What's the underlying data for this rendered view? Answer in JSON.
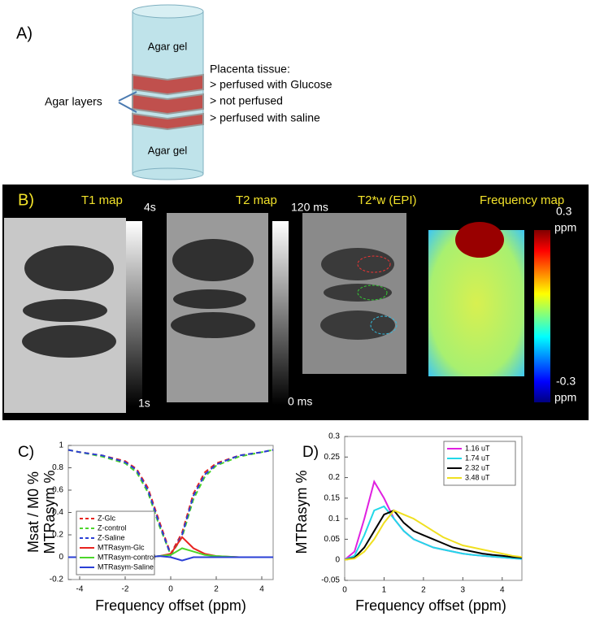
{
  "panel_a": {
    "label": "A)",
    "top_layer": "Agar gel",
    "bottom_layer": "Agar gel",
    "agar_layers": "Agar layers",
    "tissue_title": "Placenta tissue:",
    "tissue_items": [
      "> perfused with Glucose",
      "> not perfused",
      "> perfused with saline"
    ]
  },
  "panel_b": {
    "label": "B)",
    "maps": [
      "T1 map",
      "T2 map",
      "T2*w (EPI)",
      "Frequency map"
    ],
    "t1_bar": [
      "4s",
      "1s"
    ],
    "t2_bar": [
      "120 ms",
      "0 ms"
    ],
    "freq_bar": [
      "0.3",
      "ppm",
      "-0.3",
      "ppm"
    ]
  },
  "chart_data": [
    {
      "type": "line",
      "panel": "C)",
      "xlabel": "Frequency offset (ppm)",
      "ylabel": "Msat / M0 %",
      "ylabel2": "MTRasym %",
      "x": [
        -4.5,
        -4,
        -3,
        -2,
        -1.5,
        -1,
        -0.5,
        0,
        0.5,
        1,
        1.5,
        2,
        3,
        4,
        4.5
      ],
      "xlim": [
        -4.5,
        4.5
      ],
      "xticks": [
        -4,
        -2,
        0,
        2,
        4
      ],
      "ylim": [
        -0.2,
        1
      ],
      "yticks": [
        -0.2,
        0,
        0.2,
        0.4,
        0.6,
        0.8,
        1
      ],
      "legend": "lower left",
      "series": [
        {
          "name": "Z-Glc",
          "color": "#e8231f",
          "linestyle": "dashed",
          "values": [
            0.96,
            0.94,
            0.91,
            0.86,
            0.79,
            0.62,
            0.32,
            0.03,
            0.22,
            0.57,
            0.76,
            0.84,
            0.91,
            0.94,
            0.96
          ]
        },
        {
          "name": "Z-control",
          "color": "#4cd62a",
          "linestyle": "dashed",
          "values": [
            0.96,
            0.94,
            0.9,
            0.84,
            0.76,
            0.58,
            0.28,
            0.02,
            0.18,
            0.52,
            0.72,
            0.82,
            0.9,
            0.94,
            0.96
          ]
        },
        {
          "name": "Z-Saline",
          "color": "#2a3fd6",
          "linestyle": "dashed",
          "values": [
            0.96,
            0.94,
            0.91,
            0.85,
            0.78,
            0.6,
            0.3,
            0.02,
            0.2,
            0.55,
            0.74,
            0.83,
            0.91,
            0.94,
            0.96
          ]
        },
        {
          "name": "MTRasym-Glc",
          "color": "#e8231f",
          "linestyle": "solid",
          "values": [
            0,
            0,
            0,
            0,
            0,
            0,
            0.01,
            0.03,
            0.18,
            0.08,
            0.03,
            0.01,
            0,
            0,
            0
          ]
        },
        {
          "name": "MTRasym-control",
          "color": "#4cd62a",
          "linestyle": "solid",
          "values": [
            0,
            0,
            0,
            0,
            0,
            0,
            0.01,
            0.02,
            0.08,
            0.05,
            0.02,
            0.01,
            0,
            0,
            0
          ]
        },
        {
          "name": "MTRasym-Saline",
          "color": "#2a3fd6",
          "linestyle": "solid",
          "values": [
            0,
            0,
            0,
            0,
            0,
            0,
            0.01,
            0.0,
            -0.03,
            0.0,
            0,
            0,
            0,
            0,
            0
          ]
        }
      ]
    },
    {
      "type": "line",
      "panel": "D)",
      "xlabel": "Frequency offset (ppm)",
      "ylabel": "MTRasym %",
      "x": [
        0,
        0.25,
        0.5,
        0.75,
        1,
        1.25,
        1.5,
        1.75,
        2,
        2.25,
        2.5,
        2.75,
        3,
        3.25,
        3.5,
        3.75,
        4,
        4.25,
        4.5
      ],
      "xlim": [
        0,
        4.5
      ],
      "xticks": [
        0,
        1,
        2,
        3,
        4
      ],
      "ylim": [
        -0.05,
        0.3
      ],
      "yticks": [
        -0.05,
        0,
        0.05,
        0.1,
        0.15,
        0.2,
        0.25,
        0.3
      ],
      "legend": "upper right",
      "series": [
        {
          "name": "1.16 uT",
          "color": "#e020e0",
          "linestyle": "solid",
          "values": [
            0,
            0.02,
            0.1,
            0.19,
            0.15,
            0.1,
            0.07,
            0.05,
            0.04,
            0.03,
            0.025,
            0.02,
            0.015,
            0.012,
            0.01,
            0.008,
            0.006,
            0.004,
            0.002
          ]
        },
        {
          "name": "1.74 uT",
          "color": "#22d8e8",
          "linestyle": "solid",
          "values": [
            0,
            0.01,
            0.06,
            0.12,
            0.13,
            0.1,
            0.07,
            0.05,
            0.04,
            0.03,
            0.025,
            0.02,
            0.015,
            0.012,
            0.01,
            0.008,
            0.006,
            0.004,
            0.002
          ]
        },
        {
          "name": "2.32 uT",
          "color": "#000000",
          "linestyle": "solid",
          "values": [
            0,
            0.005,
            0.03,
            0.07,
            0.11,
            0.12,
            0.09,
            0.07,
            0.06,
            0.05,
            0.04,
            0.03,
            0.025,
            0.02,
            0.015,
            0.012,
            0.01,
            0.007,
            0.005
          ]
        },
        {
          "name": "3.48 uT",
          "color": "#f0e020",
          "linestyle": "solid",
          "values": [
            0,
            0.003,
            0.02,
            0.05,
            0.09,
            0.12,
            0.11,
            0.1,
            0.085,
            0.07,
            0.055,
            0.045,
            0.035,
            0.03,
            0.025,
            0.02,
            0.015,
            0.01,
            0.007
          ]
        }
      ]
    }
  ]
}
